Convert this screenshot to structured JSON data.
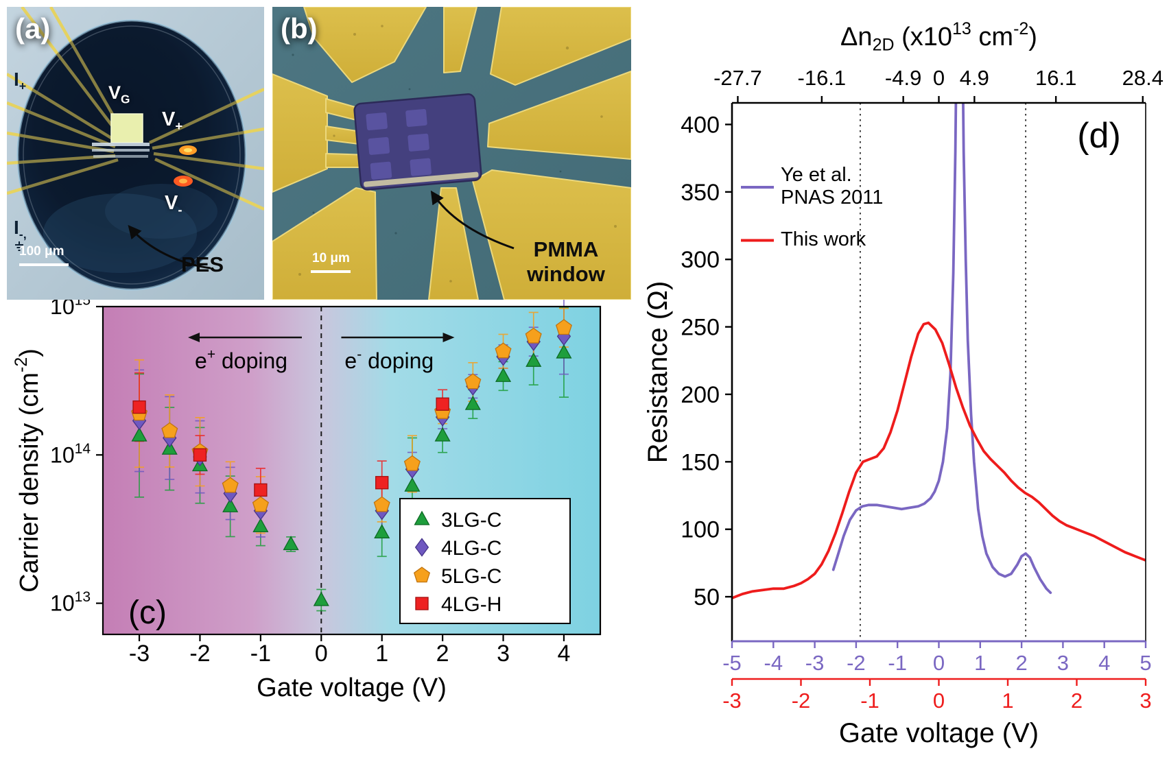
{
  "figure": {
    "background": "#ffffff"
  },
  "panels": {
    "a": {
      "tag": "(a)",
      "scale_bar": "100 μm",
      "pointer_label": "PES",
      "labels": {
        "i_plus": {
          "base": "I",
          "sub": "+"
        },
        "vg": {
          "base": "V",
          "sub": "G"
        },
        "v_plus": {
          "base": "V",
          "sub": "+"
        },
        "v_minus": {
          "base": "V",
          "sub": "-"
        },
        "i_minus": {
          "base": "I",
          "sub": "-,",
          "icon": "earth-ground"
        }
      }
    },
    "b": {
      "tag": "(b)",
      "scale_bar": "10 μm",
      "pointer_label": [
        "PMMA",
        "window"
      ]
    }
  },
  "chart_data": [
    {
      "id": "carrier-density-vs-gate-voltage",
      "type": "scatter",
      "panel_tag": "(c)",
      "xlabel": "Gate voltage (V)",
      "ylabel_parts": [
        {
          "t": "Carrier density (cm"
        },
        {
          "t": "-2",
          "sup": true
        },
        {
          "t": ")"
        }
      ],
      "xlim": [
        -3.6,
        4.6
      ],
      "x_ticks": [
        -3,
        -2,
        -1,
        0,
        1,
        2,
        3,
        4
      ],
      "y_scale": "log",
      "y_log_range": [
        12.79,
        15.0
      ],
      "y_tick_exponents": [
        13,
        14,
        15
      ],
      "zero_line_x": 0,
      "background_gradient": [
        "#c47eb5",
        "#cf9fc9",
        "#c9c6dd",
        "#a2dbe7",
        "#7ed2e2"
      ],
      "annotations": [
        {
          "parts": [
            {
              "t": "e"
            },
            {
              "t": "+",
              "sup": true
            },
            {
              "t": " doping"
            }
          ],
          "text_x": -1.32,
          "arrow_from": -0.32,
          "arrow_to": -2.05
        },
        {
          "parts": [
            {
              "t": "e"
            },
            {
              "t": "-",
              "sup": true
            },
            {
              "t": " doping"
            }
          ],
          "text_x": 1.12,
          "arrow_from": 0.33,
          "arrow_to": 2.05
        }
      ],
      "series": [
        {
          "name": "3LG-C",
          "marker": "triangle",
          "color": "#1e9e3c",
          "edge": "#0d6a24",
          "points": [
            [
              -3,
              135000000000000.0,
              2.6
            ],
            [
              -2.5,
              110000000000000.0,
              1.9
            ],
            [
              -2,
              85000000000000.0,
              1.8
            ],
            [
              -1.5,
              45000000000000.0,
              1.6
            ],
            [
              -1,
              33000000000000.0,
              1.35
            ],
            [
              -0.5,
              25000000000000.0,
              1.12
            ],
            [
              0,
              10500000000000.0,
              1.18
            ],
            [
              1,
              30000000000000.0,
              1.45
            ],
            [
              1.5,
              62000000000000.0,
              2.1
            ],
            [
              2,
              135000000000000.0,
              1.3
            ],
            [
              2.5,
              220000000000000.0,
              1.25
            ],
            [
              3,
              340000000000000.0,
              1.25
            ],
            [
              3.5,
              430000000000000.0,
              1.45
            ],
            [
              4,
              490000000000000.0,
              2.0
            ]
          ]
        },
        {
          "name": "4LG-C",
          "marker": "diamond",
          "color": "#6f58c0",
          "edge": "#46348a",
          "points": [
            [
              -3,
              170000000000000.0,
              2.2
            ],
            [
              -2.5,
              130000000000000.0,
              1.9
            ],
            [
              -2,
              97000000000000.0,
              1.75
            ],
            [
              -1.5,
              55000000000000.0,
              1.5
            ],
            [
              -1,
              42000000000000.0,
              1.5
            ],
            [
              1,
              42000000000000.0,
              1.45
            ],
            [
              1.5,
              80000000000000.0,
              1.3
            ],
            [
              2,
              180000000000000.0,
              1.2
            ],
            [
              2.5,
              290000000000000.0,
              1.2
            ],
            [
              3,
              460000000000000.0,
              1.2
            ],
            [
              3.5,
              580000000000000.0,
              1.25
            ],
            [
              4,
              630000000000000.0,
              1.8
            ]
          ]
        },
        {
          "name": "5LG-C",
          "marker": "pentagon",
          "color": "#f6a01c",
          "edge": "#c07410",
          "points": [
            [
              -3,
              190000000000000.0,
              2.3
            ],
            [
              -2.5,
              145000000000000.0,
              1.75
            ],
            [
              -2,
              105000000000000.0,
              1.7
            ],
            [
              -1.5,
              62000000000000.0,
              1.45
            ],
            [
              -1,
              46000000000000.0,
              1.55
            ],
            [
              1,
              46000000000000.0,
              1.3
            ],
            [
              1.5,
              87000000000000.0,
              1.55
            ],
            [
              2,
              195000000000000.0,
              1.2
            ],
            [
              2.5,
              310000000000000.0,
              1.35
            ],
            [
              3,
              500000000000000.0,
              1.3
            ],
            [
              3.5,
              630000000000000.0,
              1.45
            ],
            [
              4,
              720000000000000.0,
              1.35
            ]
          ]
        },
        {
          "name": "4LG-H",
          "marker": "square",
          "color": "#ee2222",
          "edge": "#a30f0f",
          "points": [
            [
              -3,
              210000000000000.0,
              1.7
            ],
            [
              -2,
              100000000000000.0,
              1.35
            ],
            [
              -1,
              58000000000000.0,
              1.4
            ],
            [
              1,
              65000000000000.0,
              1.4
            ],
            [
              2,
              220000000000000.0,
              1.25
            ]
          ]
        }
      ]
    },
    {
      "id": "resistance-vs-gate-voltage",
      "type": "line",
      "panel_tag": "(d)",
      "ylabel": "Resistance (Ω)",
      "xlabel": "Gate voltage (V)",
      "ylim": [
        17,
        416
      ],
      "y_ticks": [
        50,
        100,
        150,
        200,
        250,
        300,
        350,
        400
      ],
      "top_axis": {
        "label_parts": [
          {
            "t": "Δn"
          },
          {
            "t": "2D",
            "sub": true
          },
          {
            "t": " (x10"
          },
          {
            "t": "13",
            "sup": true
          },
          {
            "t": " cm"
          },
          {
            "t": "-2",
            "sup": true
          },
          {
            "t": ")"
          }
        ],
        "ticks": [
          {
            "label": "-27.7",
            "v": -4.86
          },
          {
            "label": "-16.1",
            "v": -2.83
          },
          {
            "label": "-4.9",
            "v": -0.86
          },
          {
            "label": "0",
            "v": 0
          },
          {
            "label": "4.9",
            "v": 0.86
          },
          {
            "label": "16.1",
            "v": 2.83
          },
          {
            "label": "28.4",
            "v": 4.93
          }
        ]
      },
      "x_axis_primary": {
        "color": "#7a67c2",
        "lim": [
          -5,
          5
        ],
        "ticks": [
          -5,
          -4,
          -3,
          -2,
          -1,
          0,
          1,
          2,
          3,
          4,
          5
        ]
      },
      "x_axis_secondary": {
        "color": "#ee1c1c",
        "lim": [
          -3,
          3
        ],
        "ticks": [
          -3,
          -2,
          -1,
          0,
          1,
          2,
          3
        ]
      },
      "reference_lines_x": [
        -1.9,
        2.1
      ],
      "legend": [
        {
          "lines": [
            "Ye et al.",
            "PNAS 2011"
          ],
          "color": "#7a67c2"
        },
        {
          "lines": [
            "This work"
          ],
          "color": "#ee1c1c"
        }
      ],
      "series": [
        {
          "name": "Ye et al. PNAS 2011",
          "axis": "primary",
          "color": "#7a67c2",
          "points": [
            [
              -2.55,
              70
            ],
            [
              -2.45,
              80
            ],
            [
              -2.3,
              95
            ],
            [
              -2.15,
              107
            ],
            [
              -2.0,
              114
            ],
            [
              -1.85,
              117
            ],
            [
              -1.7,
              118
            ],
            [
              -1.5,
              118
            ],
            [
              -1.3,
              117
            ],
            [
              -1.1,
              116
            ],
            [
              -0.9,
              115
            ],
            [
              -0.7,
              116
            ],
            [
              -0.5,
              117
            ],
            [
              -0.35,
              119
            ],
            [
              -0.2,
              123
            ],
            [
              -0.1,
              128
            ],
            [
              0,
              136
            ],
            [
              0.1,
              150
            ],
            [
              0.2,
              175
            ],
            [
              0.28,
              215
            ],
            [
              0.35,
              290
            ],
            [
              0.4,
              380
            ],
            [
              0.45,
              520
            ],
            [
              0.5,
              620
            ],
            [
              0.55,
              520
            ],
            [
              0.6,
              380
            ],
            [
              0.65,
              300
            ],
            [
              0.7,
              240
            ],
            [
              0.78,
              185
            ],
            [
              0.85,
              150
            ],
            [
              0.95,
              115
            ],
            [
              1.05,
              95
            ],
            [
              1.15,
              82
            ],
            [
              1.3,
              72
            ],
            [
              1.45,
              67
            ],
            [
              1.6,
              65
            ],
            [
              1.75,
              67
            ],
            [
              1.9,
              74
            ],
            [
              2.0,
              80
            ],
            [
              2.1,
              82
            ],
            [
              2.2,
              79
            ],
            [
              2.3,
              72
            ],
            [
              2.45,
              63
            ],
            [
              2.6,
              56
            ],
            [
              2.7,
              53
            ]
          ]
        },
        {
          "name": "This work",
          "axis": "secondary",
          "color": "#ee1c1c",
          "points": [
            [
              -3.0,
              49
            ],
            [
              -2.85,
              52
            ],
            [
              -2.7,
              54
            ],
            [
              -2.55,
              55
            ],
            [
              -2.4,
              56
            ],
            [
              -2.25,
              56
            ],
            [
              -2.1,
              58
            ],
            [
              -2.0,
              60
            ],
            [
              -1.9,
              63
            ],
            [
              -1.8,
              67
            ],
            [
              -1.7,
              74
            ],
            [
              -1.6,
              84
            ],
            [
              -1.5,
              97
            ],
            [
              -1.4,
              112
            ],
            [
              -1.3,
              128
            ],
            [
              -1.2,
              142
            ],
            [
              -1.1,
              150
            ],
            [
              -1.0,
              152
            ],
            [
              -0.9,
              154
            ],
            [
              -0.8,
              160
            ],
            [
              -0.7,
              172
            ],
            [
              -0.6,
              188
            ],
            [
              -0.5,
              208
            ],
            [
              -0.4,
              228
            ],
            [
              -0.3,
              245
            ],
            [
              -0.22,
              252
            ],
            [
              -0.15,
              253
            ],
            [
              -0.05,
              248
            ],
            [
              0.05,
              238
            ],
            [
              0.15,
              222
            ],
            [
              0.25,
              205
            ],
            [
              0.35,
              190
            ],
            [
              0.45,
              177
            ],
            [
              0.55,
              167
            ],
            [
              0.65,
              158
            ],
            [
              0.75,
              152
            ],
            [
              0.85,
              147
            ],
            [
              0.95,
              142
            ],
            [
              1.05,
              136
            ],
            [
              1.15,
              131
            ],
            [
              1.25,
              127
            ],
            [
              1.35,
              124
            ],
            [
              1.45,
              120
            ],
            [
              1.55,
              115
            ],
            [
              1.65,
              110
            ],
            [
              1.75,
              106
            ],
            [
              1.85,
              103
            ],
            [
              1.95,
              101
            ],
            [
              2.1,
              98
            ],
            [
              2.25,
              95
            ],
            [
              2.4,
              91
            ],
            [
              2.55,
              87
            ],
            [
              2.7,
              83
            ],
            [
              2.85,
              80
            ],
            [
              3.0,
              77
            ]
          ]
        }
      ]
    }
  ]
}
